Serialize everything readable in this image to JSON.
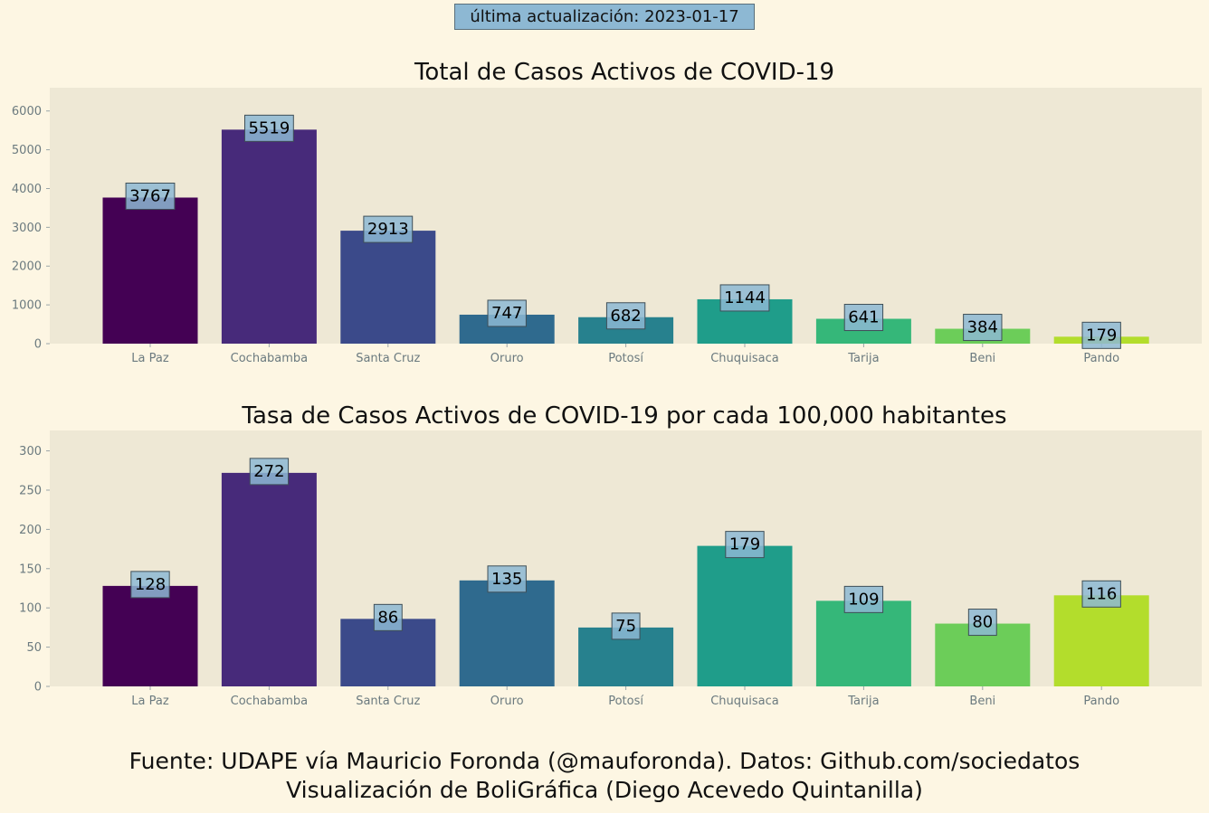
{
  "header": {
    "update_label": "última actualización: 2023-01-17"
  },
  "footer": {
    "line1": "Fuente: UDAPE vía Mauricio Foronda (@mauforonda). Datos: Github.com/sociedatos",
    "line2": "Visualización de BoliGráfica (Diego Acevedo Quintanilla)"
  },
  "colors": {
    "page_background": "#fdf6e3",
    "plot_background": "#eee8d5",
    "label_box": "#8db8d3",
    "bars": [
      "#440154",
      "#472a7a",
      "#3b4a8a",
      "#2f6a8e",
      "#27818e",
      "#1f9d8a",
      "#35b779",
      "#6ccd59",
      "#b3dd2c"
    ]
  },
  "chart_data": [
    {
      "type": "bar",
      "title": "Total de Casos Activos de COVID-19",
      "categories": [
        "La Paz",
        "Cochabamba",
        "Santa Cruz",
        "Oruro",
        "Potosí",
        "Chuquisaca",
        "Tarija",
        "Beni",
        "Pando"
      ],
      "values": [
        3767,
        5519,
        2913,
        747,
        682,
        1144,
        641,
        384,
        179
      ],
      "ylim": [
        0,
        6600
      ],
      "yticks": [
        0,
        1000,
        2000,
        3000,
        4000,
        5000,
        6000
      ],
      "xlabel": "",
      "ylabel": "",
      "grid": false
    },
    {
      "type": "bar",
      "title": "Tasa de Casos Activos de COVID-19 por cada 100,000 habitantes",
      "categories": [
        "La Paz",
        "Cochabamba",
        "Santa Cruz",
        "Oruro",
        "Potosí",
        "Chuquisaca",
        "Tarija",
        "Beni",
        "Pando"
      ],
      "values": [
        128,
        272,
        86,
        135,
        75,
        179,
        109,
        80,
        116
      ],
      "ylim": [
        0,
        326
      ],
      "yticks": [
        0,
        50,
        100,
        150,
        200,
        250,
        300
      ],
      "xlabel": "",
      "ylabel": "",
      "grid": false
    }
  ]
}
